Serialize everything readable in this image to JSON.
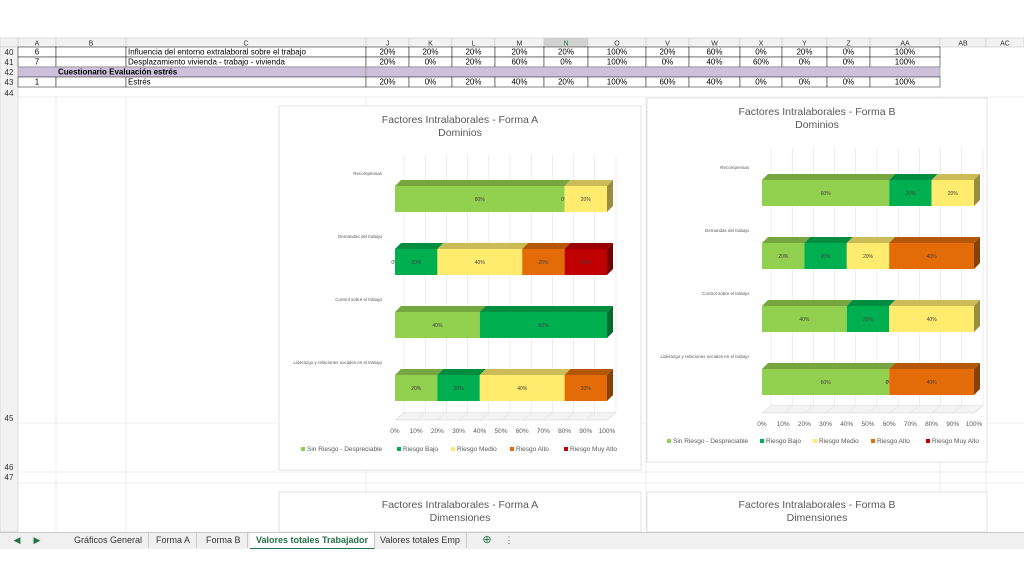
{
  "columns": [
    "A",
    "B",
    "C",
    "J",
    "K",
    "L",
    "M",
    "N",
    "O",
    "V",
    "W",
    "X",
    "Y",
    "Z",
    "AA",
    "AB",
    "AC"
  ],
  "rows": [
    {
      "num": "40",
      "a": "6",
      "c": "Influencia del entorno extralaboral sobre el trabajo",
      "values": [
        "20%",
        "20%",
        "20%",
        "20%",
        "20%",
        "100%",
        "20%",
        "60%",
        "0%",
        "20%",
        "0%",
        "100%"
      ]
    },
    {
      "num": "41",
      "a": "7",
      "c": "Desplazamiento vivienda - trabajo - vivienda",
      "values": [
        "20%",
        "0%",
        "20%",
        "60%",
        "0%",
        "100%",
        "0%",
        "40%",
        "60%",
        "0%",
        "0%",
        "100%"
      ]
    },
    {
      "num": "42",
      "section": "Cuestionario Evaluación estrés"
    },
    {
      "num": "43",
      "a": "1",
      "c": "Estrés",
      "values": [
        "20%",
        "0%",
        "20%",
        "40%",
        "20%",
        "100%",
        "60%",
        "40%",
        "0%",
        "0%",
        "0%",
        "100%"
      ]
    }
  ],
  "extra_rows": [
    "44",
    "45",
    "46",
    "47"
  ],
  "colors": {
    "sin_riesgo": "#92d050",
    "bajo": "#00b050",
    "medio": "#ffeb6e",
    "alto": "#e36c09",
    "muy_alto": "#c00000"
  },
  "chart_data": [
    {
      "type": "bar",
      "title": "Factores Intralaborales - Forma A",
      "subtitle": "Dominios",
      "categories": [
        "Recompensas",
        "Demandas del trabajo",
        "Control sobre el trabajo",
        "Liderazgo y relaciones sociales en el trabajo"
      ],
      "series": [
        {
          "name": "Sin Riesgo - Despreciable",
          "values": [
            80,
            0,
            40,
            20
          ]
        },
        {
          "name": "Riesgo Bajo",
          "values": [
            0,
            20,
            60,
            20
          ]
        },
        {
          "name": "Riesgo Medio",
          "values": [
            20,
            40,
            0,
            40
          ]
        },
        {
          "name": "Riesgo Alto",
          "values": [
            0,
            20,
            0,
            20
          ]
        },
        {
          "name": "Riesgo Muy Alto",
          "values": [
            0,
            20,
            0,
            0
          ]
        }
      ],
      "xlim": [
        0,
        100
      ],
      "ticks": [
        "0%",
        "10%",
        "20%",
        "30%",
        "40%",
        "50%",
        "60%",
        "70%",
        "80%",
        "90%",
        "100%"
      ],
      "legend": "bottom"
    },
    {
      "type": "bar",
      "title": "Factores Intralaborales - Forma B",
      "subtitle": "Dominios",
      "categories": [
        "Recompensas",
        "Demandas del trabajo",
        "Control sobre el trabajo",
        "Liderazgo y relaciones sociales en el trabajo"
      ],
      "series": [
        {
          "name": "Sin Riesgo - Despreciable",
          "values": [
            60,
            20,
            40,
            60
          ]
        },
        {
          "name": "Riesgo Bajo",
          "values": [
            20,
            20,
            20,
            0
          ]
        },
        {
          "name": "Riesgo Medio",
          "values": [
            20,
            20,
            40,
            0
          ]
        },
        {
          "name": "Riesgo Alto",
          "values": [
            0,
            40,
            0,
            40
          ]
        },
        {
          "name": "Riesgo Muy Alto",
          "values": [
            0,
            0,
            0,
            0
          ]
        }
      ],
      "xlim": [
        0,
        100
      ],
      "ticks": [
        "0%",
        "10%",
        "20%",
        "30%",
        "40%",
        "50%",
        "60%",
        "70%",
        "80%",
        "90%",
        "100%"
      ],
      "legend": "bottom"
    }
  ],
  "lower_charts": [
    {
      "title": "Factores Intralaborales - Forma A",
      "subtitle": "Dimensiones"
    },
    {
      "title": "Factores Intralaborales - Forma B",
      "subtitle": "Dimensiones"
    }
  ],
  "tabs": [
    "Gráficos General",
    "Forma A",
    "Forma B",
    "Valores totales Trabajador",
    "Valores totales Emp"
  ],
  "active_tab": "Valores totales Trabajador",
  "nav": {
    "prev": "◀",
    "next": "▶",
    "add": "⊕",
    "more": "⋮"
  }
}
